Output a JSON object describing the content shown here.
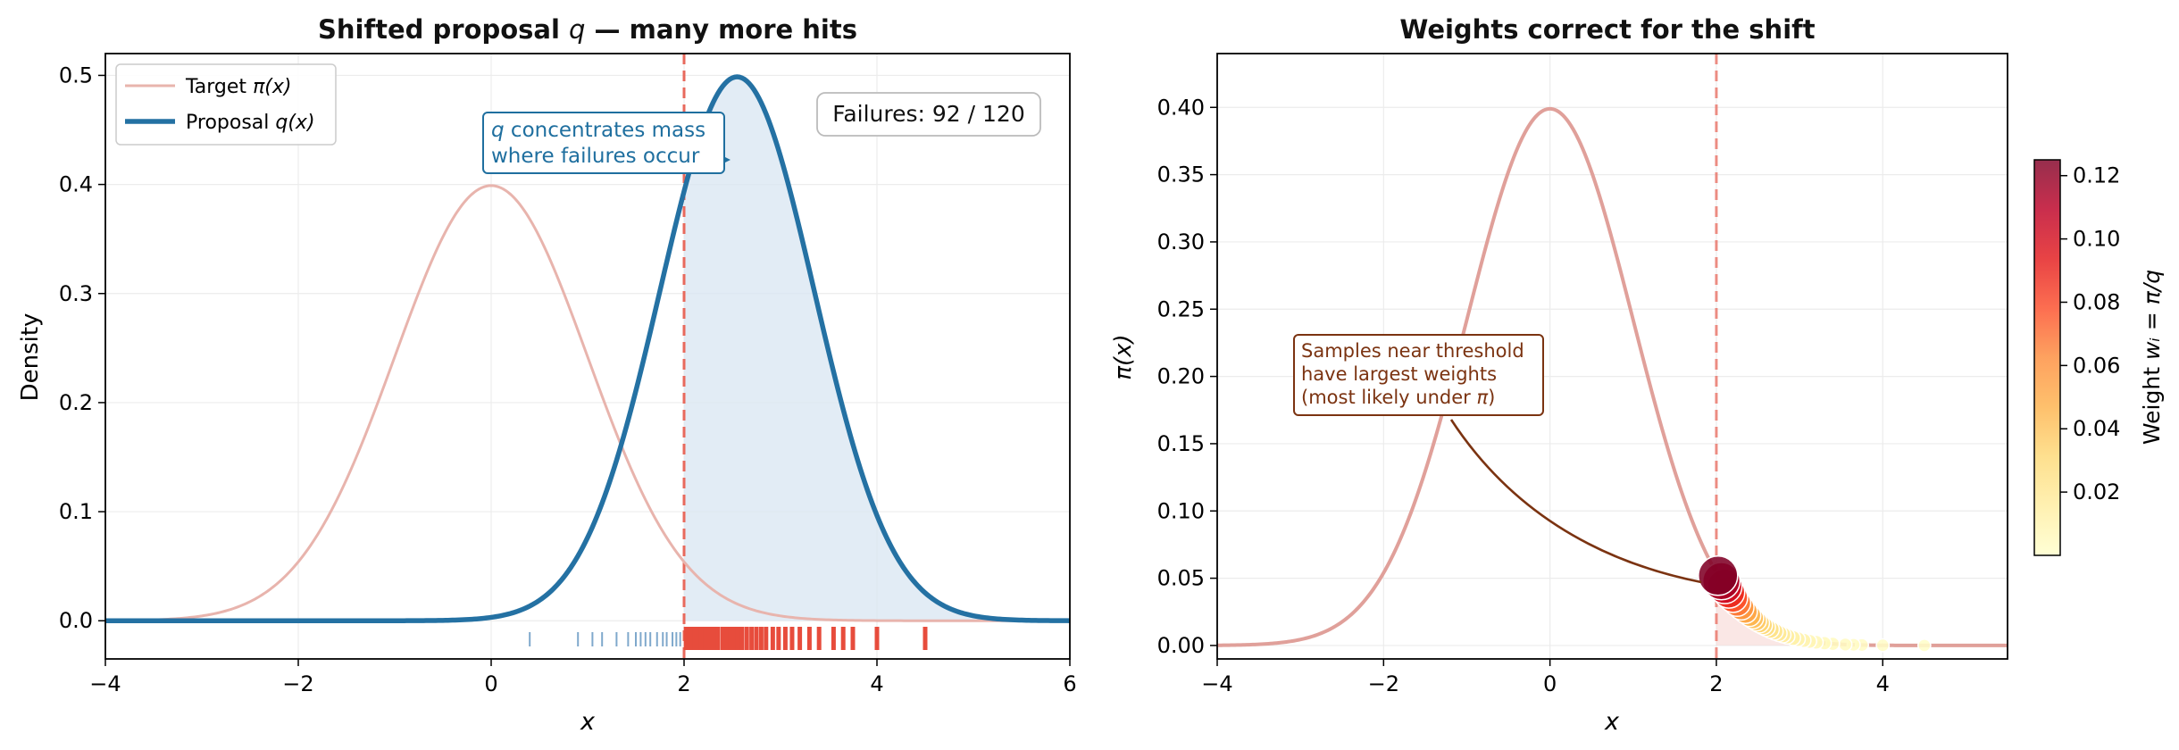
{
  "chart_data": [
    {
      "type": "line",
      "title_main": "Shifted proposal ",
      "title_var": "q",
      "title_rest": " — many more hits",
      "xlabel": "x",
      "ylabel": "Density",
      "xlim": [
        -4,
        6
      ],
      "ylim": [
        -0.035,
        0.52
      ],
      "xticks": [
        -4,
        -2,
        0,
        2,
        4,
        6
      ],
      "xtick_labels": [
        "−4",
        "−2",
        "0",
        "2",
        "4",
        "6"
      ],
      "yticks": [
        0.0,
        0.1,
        0.2,
        0.3,
        0.4,
        0.5
      ],
      "ytick_labels": [
        "0.0",
        "0.1",
        "0.2",
        "0.3",
        "0.4",
        "0.5"
      ],
      "grid": true,
      "threshold": 2,
      "series": [
        {
          "name": "Target",
          "legend_pre": "Target ",
          "legend_math": "π(x)",
          "dist": "normal",
          "mean": 0,
          "sd": 1,
          "color": "#e8b4ad"
        },
        {
          "name": "Proposal",
          "legend_pre": "Proposal ",
          "legend_math": "q(x)",
          "dist": "normal",
          "mean": 2.55,
          "sd": 0.8,
          "color": "#2471a3"
        }
      ],
      "legend_position": "upper-left",
      "failures_text": "Failures: 92 / 120",
      "annotation_var": "q",
      "annotation_line1": " concentrates mass",
      "annotation_line2": "where failures occur",
      "annotation_color": "#1f6f9f",
      "safe_samples": [
        0.4,
        0.9,
        1.05,
        1.15,
        1.3,
        1.42,
        1.5,
        1.55,
        1.6,
        1.65,
        1.72,
        1.78,
        1.82,
        1.88,
        1.92,
        1.96
      ],
      "fail_samples": [
        2.02,
        2.05,
        2.08,
        2.11,
        2.15,
        2.18,
        2.22,
        2.25,
        2.28,
        2.32,
        2.35,
        2.4,
        2.44,
        2.48,
        2.52,
        2.56,
        2.6,
        2.65,
        2.7,
        2.75,
        2.8,
        2.85,
        2.92,
        2.98,
        3.05,
        3.12,
        3.2,
        3.3,
        3.4,
        3.55,
        3.65,
        3.75,
        4.0,
        4.5
      ],
      "safe_color": "#7fa8cc",
      "fail_color": "#e74c3c"
    },
    {
      "type": "scatter",
      "title": "Weights correct for the shift",
      "xlabel": "x",
      "ylabel": "π(x)",
      "xlim": [
        -4,
        5.5
      ],
      "ylim": [
        -0.01,
        0.44
      ],
      "xticks": [
        -4,
        -2,
        0,
        2,
        4
      ],
      "xtick_labels": [
        "−4",
        "−2",
        "0",
        "2",
        "4"
      ],
      "yticks": [
        0.0,
        0.05,
        0.1,
        0.15,
        0.2,
        0.25,
        0.3,
        0.35,
        0.4
      ],
      "ytick_labels": [
        "0.00",
        "0.05",
        "0.10",
        "0.15",
        "0.20",
        "0.25",
        "0.30",
        "0.35",
        "0.40"
      ],
      "grid": true,
      "threshold": 2,
      "curve_color": "#e0a09a",
      "points_x": [
        4.5,
        4.0,
        3.75,
        3.65,
        3.55,
        3.4,
        3.3,
        3.2,
        3.12,
        3.05,
        2.98,
        2.92,
        2.85,
        2.8,
        2.75,
        2.7,
        2.65,
        2.6,
        2.56,
        2.52,
        2.48,
        2.44,
        2.4,
        2.35,
        2.3,
        2.25,
        2.2,
        2.15,
        2.1,
        2.06,
        2.02
      ],
      "colorbar_label_pre": "Weight ",
      "colorbar_label_math": "wᵢ = π/q",
      "colorbar_range": [
        0.0,
        0.125
      ],
      "colorbar_ticks": [
        0.02,
        0.04,
        0.06,
        0.08,
        0.1,
        0.12
      ],
      "colorbar_tick_labels": [
        "0.02",
        "0.04",
        "0.06",
        "0.08",
        "0.10",
        "0.12"
      ],
      "colormap": [
        "#ffffcc",
        "#ffeda0",
        "#fed976",
        "#feb24c",
        "#fd8d3c",
        "#fc4e2a",
        "#e31a1c",
        "#bd0026",
        "#800026"
      ],
      "annotation_line1": "Samples near threshold",
      "annotation_line2": "have largest weights",
      "annotation_line3_pre": "(most likely under ",
      "annotation_line3_math": "π",
      "annotation_line3_post": ")",
      "annotation_color": "#7b3311"
    }
  ]
}
